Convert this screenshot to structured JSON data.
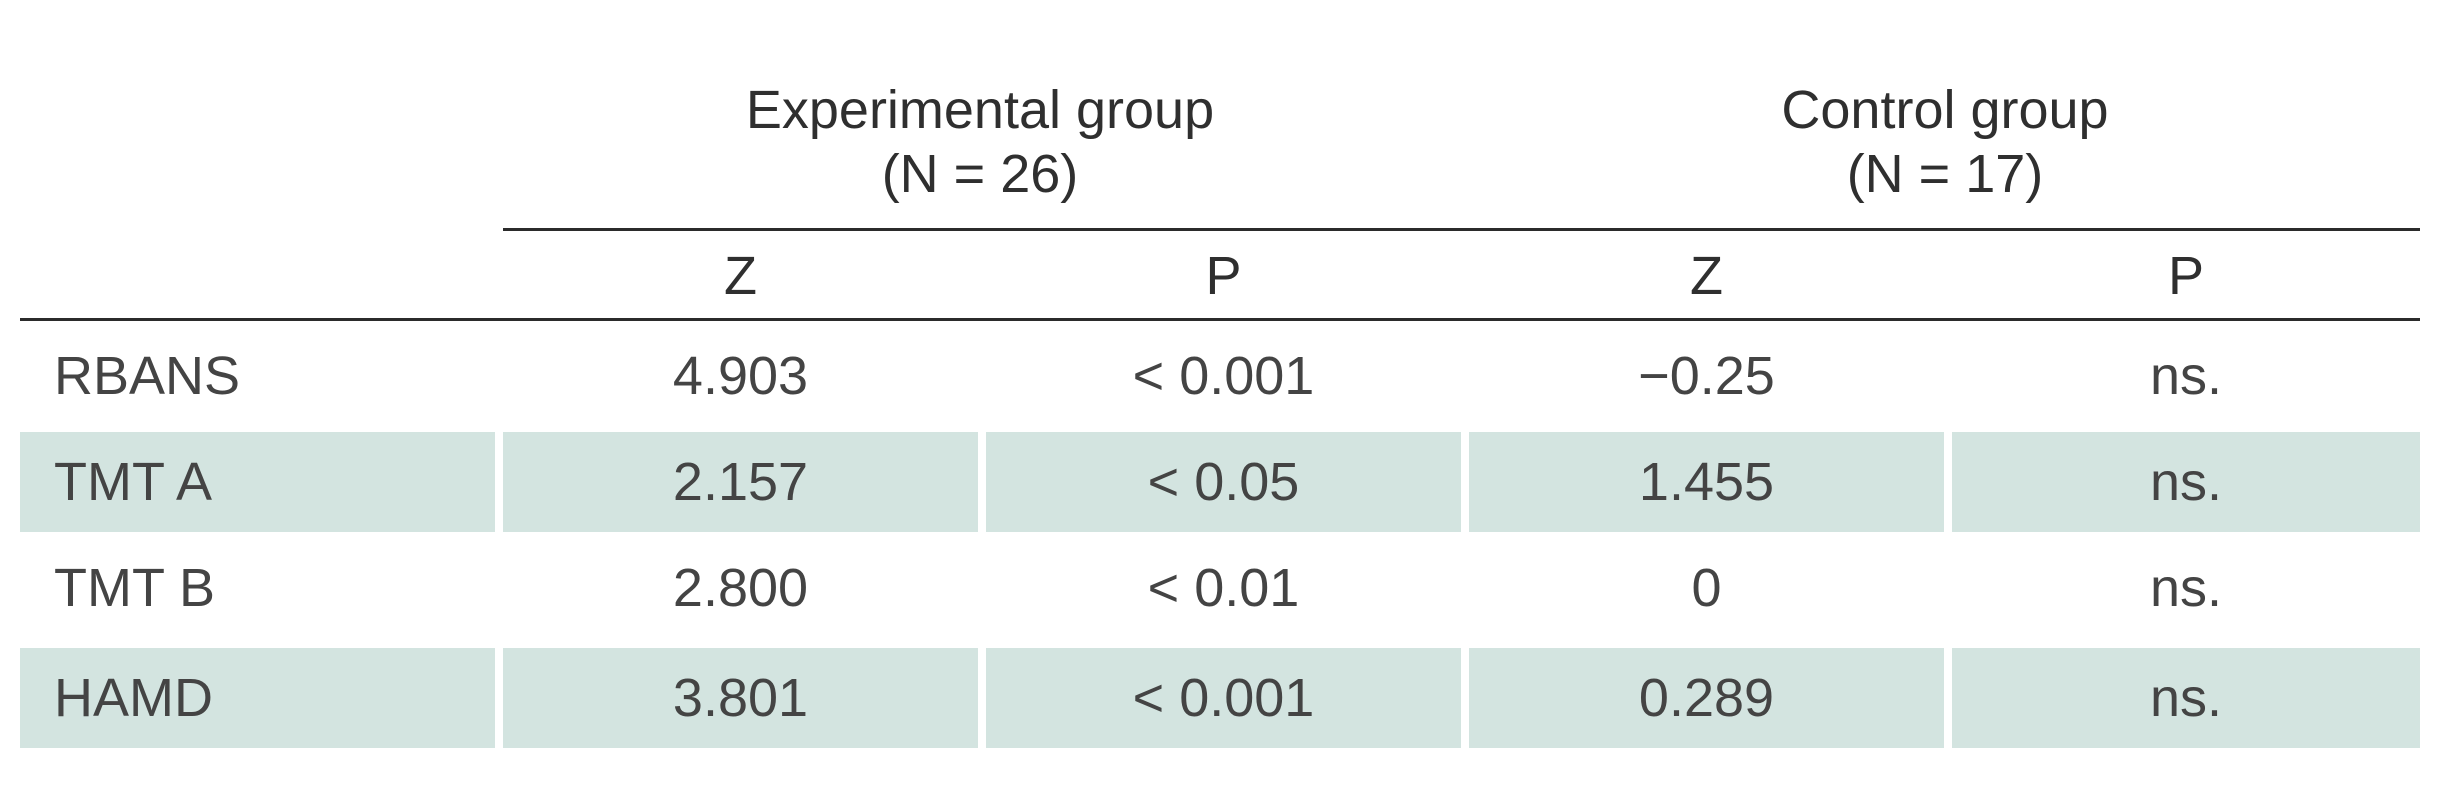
{
  "table": {
    "groups": [
      {
        "name": "Experimental group",
        "n": "(N = 26)"
      },
      {
        "name": "Control group",
        "n": "(N = 17)"
      }
    ],
    "subheaders": [
      "Z",
      "P",
      "Z",
      "P"
    ],
    "rows": [
      {
        "label": "RBANS",
        "cells": [
          "4.903",
          "< 0.001",
          "−0.25",
          "ns."
        ],
        "shaded": false
      },
      {
        "label": "TMT A",
        "cells": [
          "2.157",
          "< 0.05",
          "1.455",
          "ns."
        ],
        "shaded": true
      },
      {
        "label": "TMT B",
        "cells": [
          "2.800",
          "< 0.01",
          "0",
          "ns."
        ],
        "shaded": false
      },
      {
        "label": "HAMD",
        "cells": [
          "3.801",
          "< 0.001",
          "0.289",
          "ns."
        ],
        "shaded": true
      }
    ],
    "colors": {
      "shade": "#d3e4e0",
      "rule": "#2b2b2b",
      "text": "#444444"
    }
  }
}
